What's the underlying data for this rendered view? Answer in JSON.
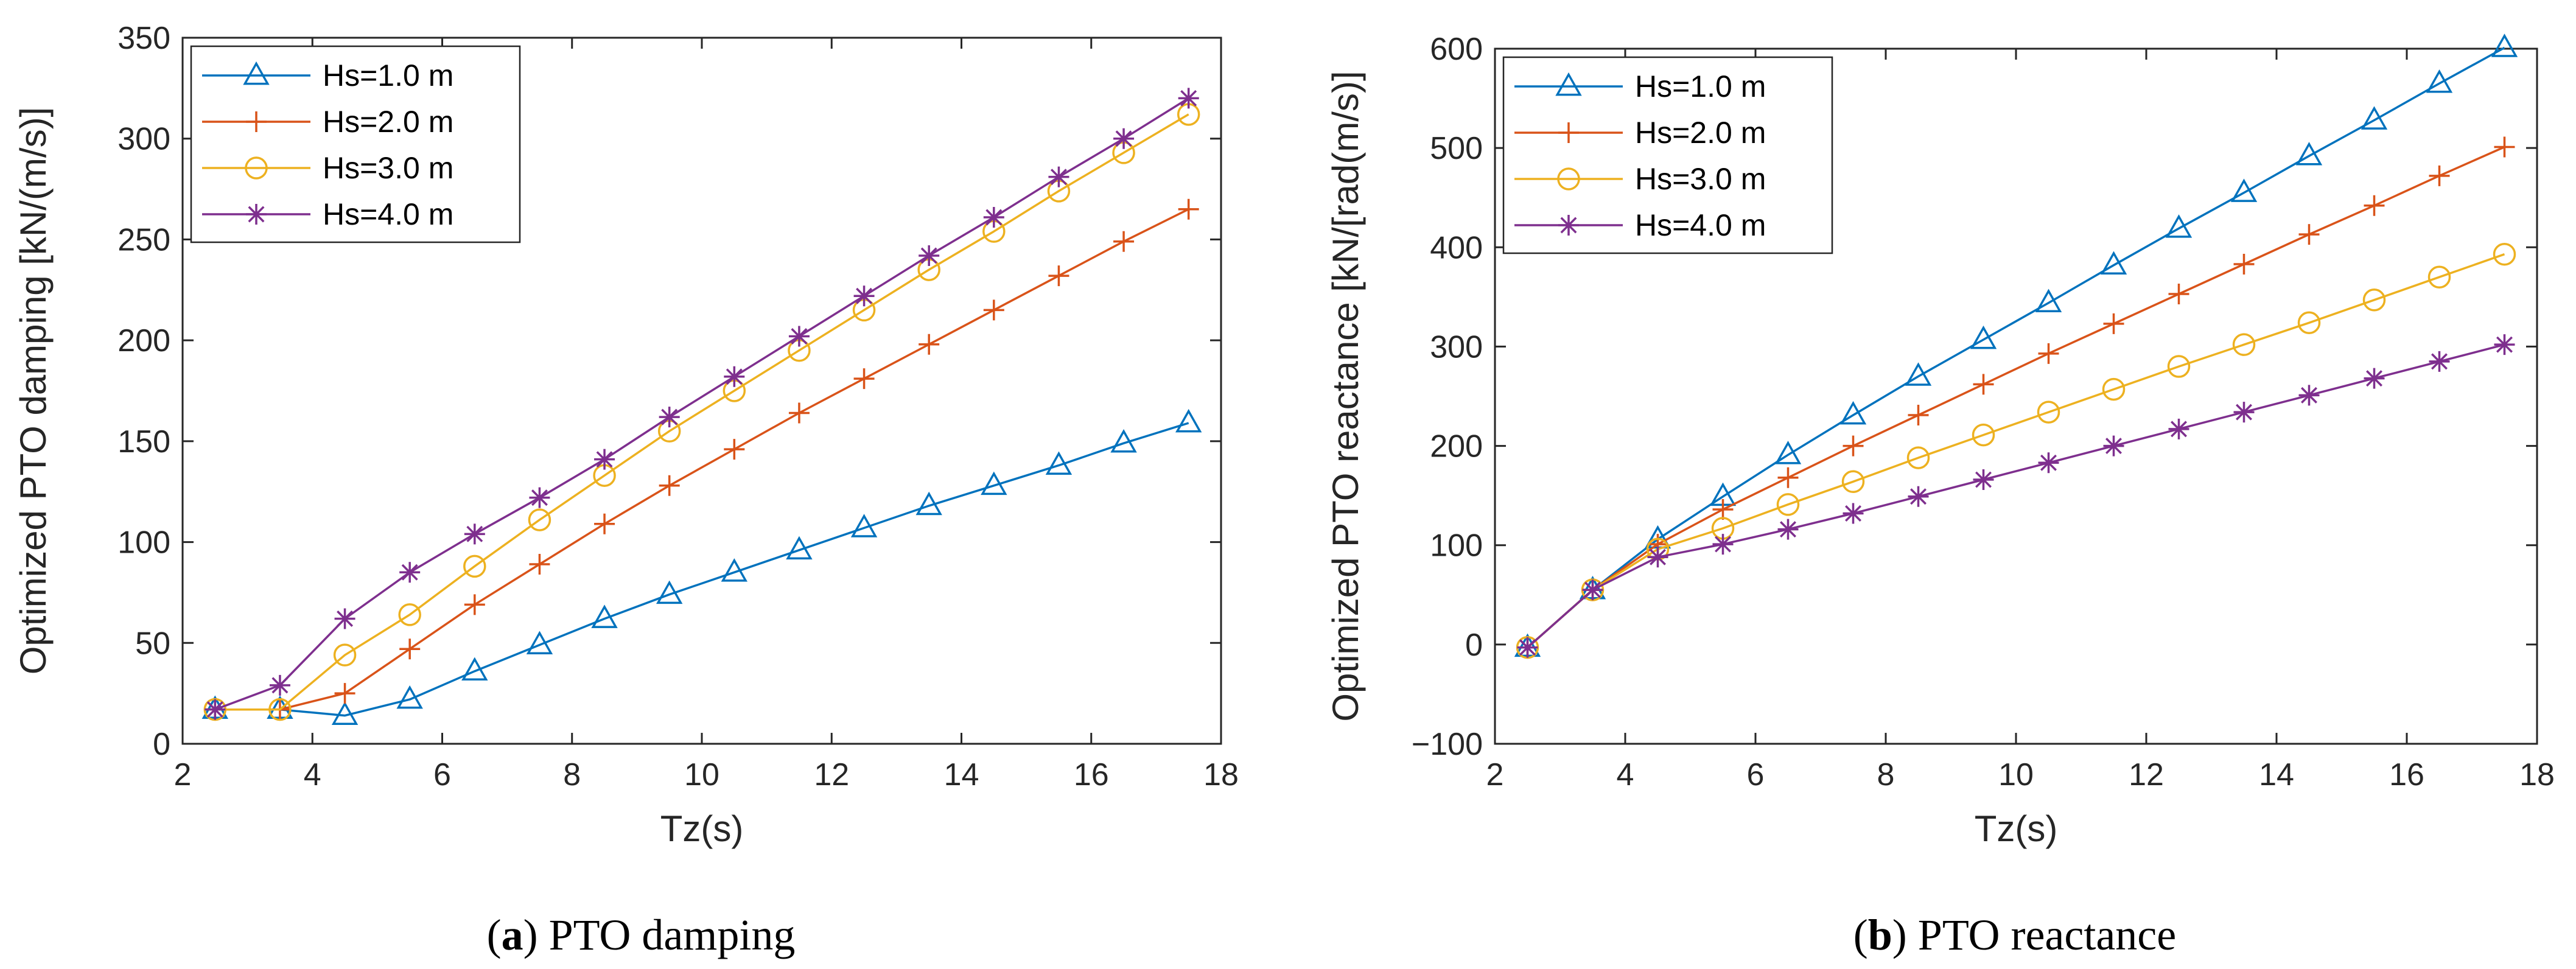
{
  "chart_data": [
    {
      "type": "line",
      "caption": {
        "letter": "a",
        "text": "PTO damping"
      },
      "xlabel": "Tz(s)",
      "ylabel": "Optimized PTO damping [kN/(m/s)]",
      "xlim": [
        2,
        18
      ],
      "ylim": [
        0,
        350
      ],
      "xticks": [
        2,
        4,
        6,
        8,
        10,
        12,
        14,
        16,
        18
      ],
      "yticks": [
        0,
        50,
        100,
        150,
        200,
        250,
        300,
        350
      ],
      "grid": false,
      "legend": "top-left",
      "x": [
        2.5,
        3.5,
        4.5,
        5.5,
        6.5,
        7.5,
        8.5,
        9.5,
        10.5,
        11.5,
        12.5,
        13.5,
        14.5,
        15.5,
        16.5,
        17.5
      ],
      "series": [
        {
          "name": "Hs=1.0 m",
          "color": "#0072BD",
          "marker": "triangle",
          "values": [
            17,
            17,
            14,
            22,
            36,
            49,
            62,
            74,
            85,
            96,
            107,
            118,
            128,
            138,
            149,
            159
          ]
        },
        {
          "name": "Hs=2.0 m",
          "color": "#D95319",
          "marker": "plus",
          "values": [
            17,
            17,
            25,
            47,
            69,
            89,
            109,
            128,
            146,
            164,
            181,
            198,
            215,
            232,
            249,
            265
          ]
        },
        {
          "name": "Hs=3.0 m",
          "color": "#EDB120",
          "marker": "circle",
          "values": [
            17,
            17,
            44,
            64,
            88,
            111,
            133,
            155,
            175,
            195,
            215,
            235,
            254,
            274,
            293,
            312
          ]
        },
        {
          "name": "Hs=4.0 m",
          "color": "#7E2F8E",
          "marker": "star",
          "values": [
            17,
            29,
            62,
            85,
            104,
            122,
            141,
            162,
            182,
            202,
            222,
            242,
            261,
            281,
            300,
            320
          ]
        }
      ]
    },
    {
      "type": "line",
      "caption": {
        "letter": "b",
        "text": "PTO reactance"
      },
      "xlabel": "Tz(s)",
      "ylabel": "Optimized PTO reactance [kN/[rad(m/s)]",
      "xlim": [
        2,
        18
      ],
      "ylim": [
        -100,
        600
      ],
      "xticks": [
        2,
        4,
        6,
        8,
        10,
        12,
        14,
        16,
        18
      ],
      "yticks": [
        -100,
        0,
        100,
        200,
        300,
        400,
        500,
        600
      ],
      "grid": false,
      "legend": "top-left",
      "x": [
        2.5,
        3.5,
        4.5,
        5.5,
        6.5,
        7.5,
        8.5,
        9.5,
        10.5,
        11.5,
        12.5,
        13.5,
        14.5,
        15.5,
        16.5,
        17.5
      ],
      "series": [
        {
          "name": "Hs=1.0 m",
          "color": "#0072BD",
          "marker": "triangle",
          "values": [
            -3,
            55,
            106,
            149,
            191,
            231,
            270,
            307,
            344,
            382,
            419,
            455,
            492,
            528,
            565,
            601
          ]
        },
        {
          "name": "Hs=2.0 m",
          "color": "#D95319",
          "marker": "plus",
          "values": [
            -3,
            55,
            101,
            136,
            168,
            200,
            231,
            262,
            293,
            323,
            353,
            383,
            413,
            442,
            472,
            501
          ]
        },
        {
          "name": "Hs=3.0 m",
          "color": "#EDB120",
          "marker": "circle",
          "values": [
            -3,
            55,
            96,
            117,
            141,
            164,
            188,
            211,
            234,
            257,
            280,
            302,
            324,
            347,
            370,
            393
          ]
        },
        {
          "name": "Hs=4.0 m",
          "color": "#7E2F8E",
          "marker": "star",
          "values": [
            -3,
            55,
            88,
            101,
            116,
            132,
            149,
            166,
            183,
            200,
            217,
            234,
            251,
            268,
            285,
            302
          ]
        }
      ]
    }
  ]
}
